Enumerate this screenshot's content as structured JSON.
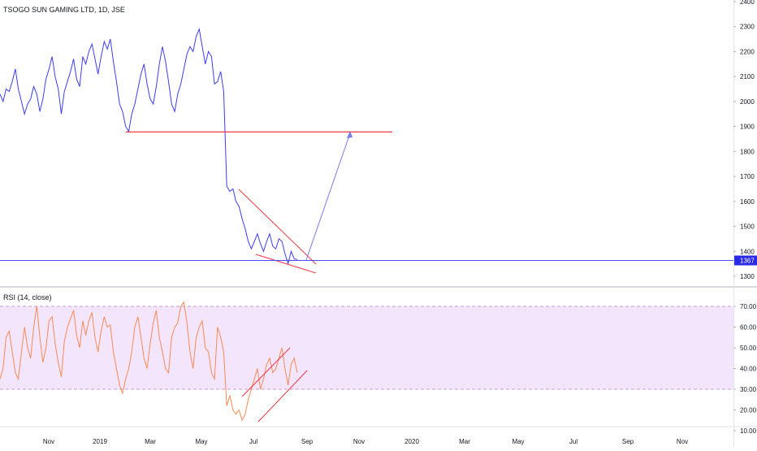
{
  "chart_data": [
    {
      "type": "line",
      "title": "TSOGO SUN GAMING LTD, 1D, JSE",
      "price_label": "1367",
      "y_ticks": [
        1300,
        1400,
        1500,
        1600,
        1700,
        1800,
        1900,
        2000,
        2100,
        2200,
        2300,
        2400
      ],
      "ylim": [
        1268,
        2412
      ],
      "x_ticks": [
        "Nov",
        "2019",
        "Mar",
        "May",
        "Jul",
        "Sep",
        "Nov",
        "2020",
        "Mar",
        "May",
        "Jul",
        "Sep",
        "Nov"
      ],
      "colors": {
        "series": "#3c3cf0",
        "annotation": "#f23645",
        "projection": "#7b7bea",
        "price_line": "#4a4aee",
        "price_badge": "#2a2ae6"
      },
      "series": [
        {
          "values": [
            2030,
            2000,
            2050,
            2040,
            2080,
            2130,
            2050,
            2000,
            1950,
            1990,
            2010,
            2060,
            2030,
            1960,
            2010,
            2090,
            2130,
            2180,
            2100,
            2050,
            1950,
            2040,
            2080,
            2120,
            2170,
            2090,
            2060,
            2180,
            2150,
            2200,
            2230,
            2170,
            2110,
            2180,
            2240,
            2210,
            2250,
            2160,
            2080,
            1990,
            1960,
            1900,
            1880,
            1950,
            1990,
            2050,
            2110,
            2150,
            2070,
            2010,
            1990,
            2060,
            2150,
            2220,
            2160,
            2080,
            1990,
            1960,
            2030,
            2070,
            2130,
            2190,
            2220,
            2200,
            2260,
            2290,
            2220,
            2150,
            2200,
            2180,
            2070,
            2080,
            2120,
            2040,
            1660,
            1640,
            1650,
            1600,
            1580,
            1530,
            1490,
            1440,
            1410,
            1440,
            1470,
            1430,
            1400,
            1440,
            1470,
            1420,
            1410,
            1450,
            1440,
            1390,
            1350,
            1400,
            1370,
            1367
          ]
        }
      ],
      "annotations": {
        "support_level": 1878,
        "wedge_upper": [
          [
            1665,
            1350
          ]
        ],
        "projection_target": 1880
      }
    },
    {
      "type": "line",
      "title": "RSI (14, close)",
      "y_ticks": [
        "10.00",
        "20.00",
        "30.00",
        "40.00",
        "50.00",
        "60.00",
        "70.00"
      ],
      "ylim": [
        6,
        77
      ],
      "bands": {
        "upper": 70,
        "lower": 30
      },
      "colors": {
        "series": "#f58a54",
        "band_fill": "#f3e5fc",
        "band_line": "#c79ad6",
        "annotation": "#f23645"
      },
      "series": [
        {
          "values": [
            35,
            40,
            55,
            58,
            48,
            38,
            35,
            48,
            60,
            50,
            45,
            60,
            70,
            55,
            43,
            50,
            63,
            65,
            52,
            43,
            36,
            53,
            60,
            64,
            68,
            56,
            50,
            63,
            56,
            63,
            67,
            55,
            48,
            58,
            65,
            60,
            61,
            48,
            40,
            32,
            28,
            35,
            40,
            48,
            60,
            65,
            55,
            45,
            40,
            52,
            62,
            68,
            55,
            48,
            40,
            38,
            55,
            60,
            62,
            70,
            72,
            62,
            48,
            40,
            55,
            60,
            63,
            50,
            48,
            38,
            35,
            60,
            55,
            48,
            22,
            27,
            20,
            18,
            20,
            15,
            18,
            25,
            30,
            35,
            40,
            30,
            35,
            42,
            45,
            38,
            40,
            45,
            50,
            40,
            32,
            42,
            45,
            38
          ]
        }
      ]
    }
  ]
}
